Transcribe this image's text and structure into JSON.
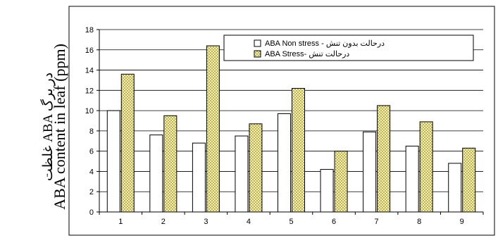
{
  "chart_data": {
    "type": "bar",
    "categories": [
      "1",
      "2",
      "3",
      "4",
      "5",
      "6",
      "7",
      "8",
      "9"
    ],
    "series": [
      {
        "name": "ABA Non stress - درحالت بدون تنش",
        "values": [
          10.0,
          7.6,
          6.8,
          7.5,
          9.7,
          4.2,
          7.9,
          6.5,
          4.8
        ],
        "pattern": "plain"
      },
      {
        "name": "ABA Stress- درحالت تنش",
        "values": [
          13.6,
          9.5,
          16.4,
          8.7,
          12.2,
          6.0,
          10.5,
          8.9,
          6.3
        ],
        "pattern": "dotted"
      }
    ],
    "ylabel_line1": "غلظت ABA در برگ",
    "ylabel_line2": "ABA content in leaf (ppm)",
    "ylim": [
      0,
      18
    ],
    "yticks": [
      "0",
      "2",
      "4",
      "6",
      "8",
      "10",
      "12",
      "14",
      "16",
      "18"
    ],
    "grid": true,
    "legend": "top-right",
    "colors": {
      "plain": "#ffffff",
      "dotted_bg": "#f7ef9a",
      "dotted_dot": "#5a5a30",
      "grid": "#000000"
    }
  }
}
